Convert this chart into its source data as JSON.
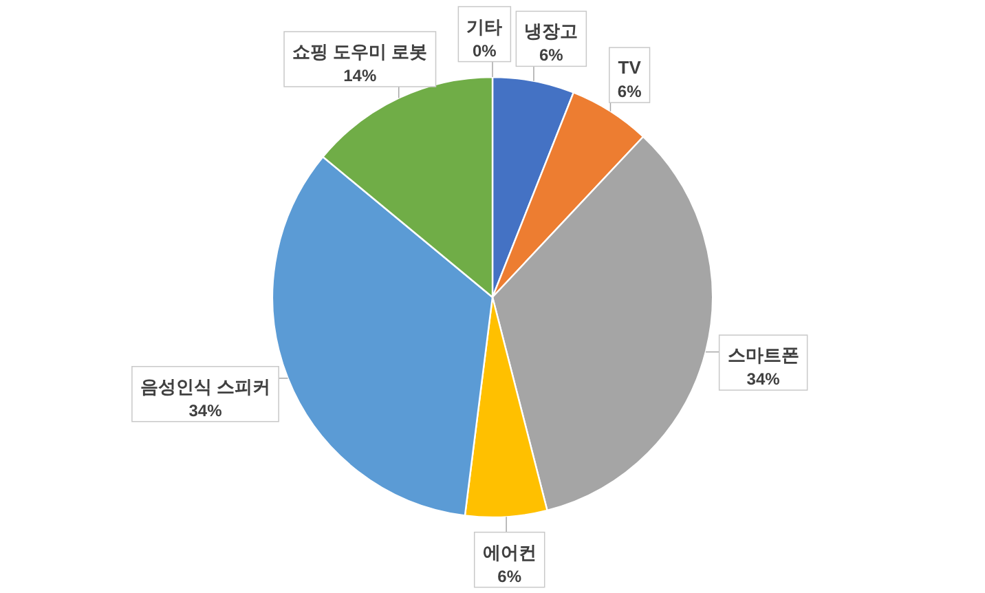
{
  "chart_data": {
    "type": "pie",
    "categories": [
      "냉장고",
      "TV",
      "스마트폰",
      "에어컨",
      "음성인식 스피커",
      "쇼핑 도우미 로봇",
      "기타"
    ],
    "values": [
      6,
      6,
      34,
      6,
      34,
      14,
      0
    ],
    "colors": [
      "#4472c4",
      "#ed7d31",
      "#a5a5a5",
      "#ffc000",
      "#5b9bd5",
      "#70ad47",
      null
    ],
    "value_labels": [
      "6%",
      "6%",
      "34%",
      "6%",
      "34%",
      "14%",
      "0%"
    ]
  }
}
